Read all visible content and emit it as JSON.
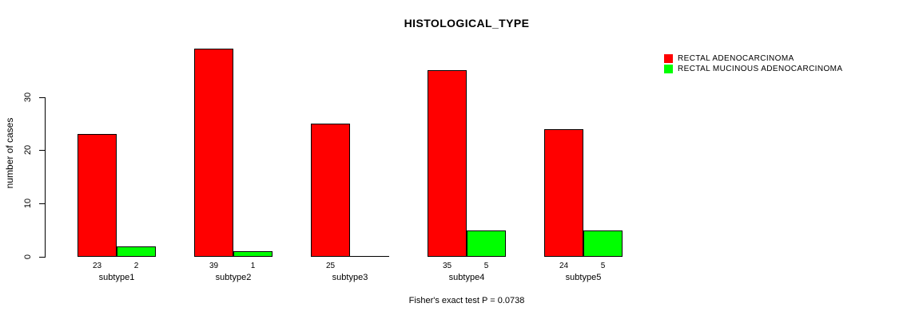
{
  "chart_data": {
    "type": "bar",
    "title": "HISTOLOGICAL_TYPE",
    "ylabel": "number of cases",
    "xlabel": "",
    "categories": [
      "subtype1",
      "subtype2",
      "subtype3",
      "subtype4",
      "subtype5"
    ],
    "series": [
      {
        "name": "RECTAL ADENOCARCINOMA",
        "color": "#FF0000",
        "values": [
          23,
          39,
          25,
          35,
          24
        ]
      },
      {
        "name": "RECTAL MUCINOUS ADENOCARCINOMA",
        "color": "#00FF00",
        "values": [
          2,
          1,
          0,
          5,
          5
        ]
      }
    ],
    "bar_value_labels": [
      [
        "23",
        "39",
        "25",
        "35",
        "24"
      ],
      [
        "2",
        "1",
        "",
        "5",
        "5"
      ]
    ],
    "yticks": [
      0,
      10,
      20,
      30
    ],
    "ylim": [
      0,
      30
    ],
    "grid": false,
    "legend_position": "top-right",
    "annotation": "Fisher's exact test P = 0.0738",
    "bar_border_color": "#000000",
    "text_color": "#000000",
    "background_color": "#FFFFFF"
  }
}
